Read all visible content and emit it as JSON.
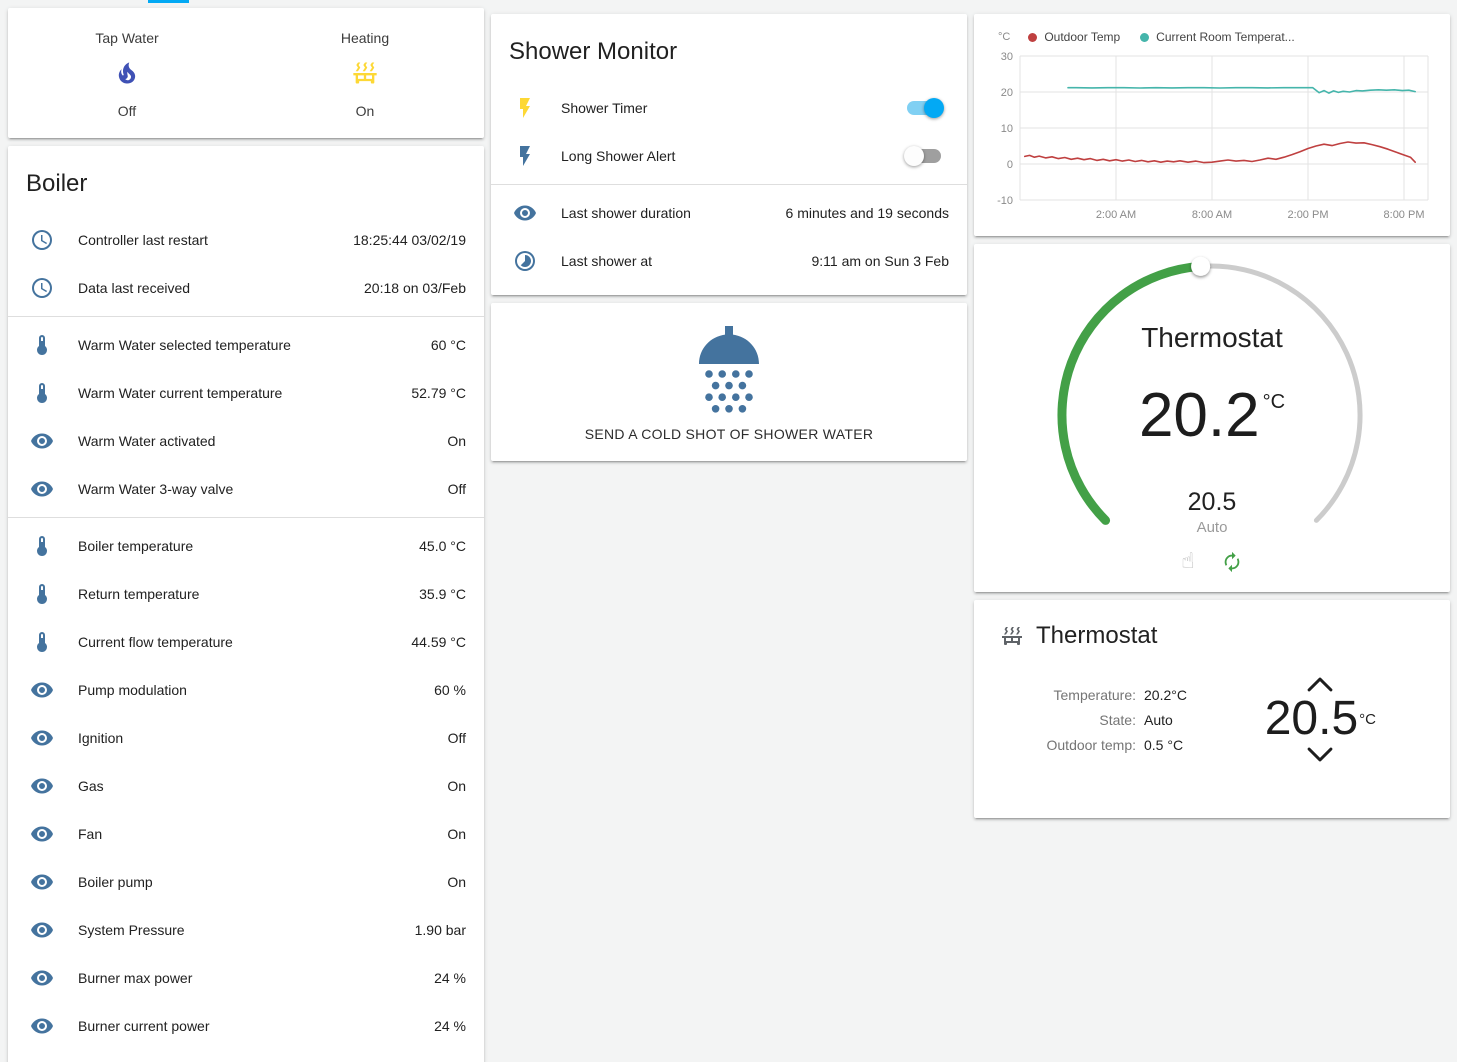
{
  "colors": {
    "accent_blue": "#03a9f4",
    "icon_blue": "#44739e",
    "toggle_on": "#03a9f4",
    "arc_green": "#43a047",
    "arc_rest_gray": "#cccccc"
  },
  "glance_card": {
    "items": [
      {
        "name": "tap-water",
        "label": "Tap Water",
        "state": "Off",
        "icon": "fire-icon",
        "icon_color": "#3f51b5"
      },
      {
        "name": "heating",
        "label": "Heating",
        "state": "On",
        "icon": "radiator-icon",
        "icon_color": "#fdd835"
      }
    ]
  },
  "boiler_card": {
    "title": "Boiler",
    "sections": [
      {
        "rows": [
          {
            "icon": "clock-icon",
            "label": "Controller last restart",
            "value": "18:25:44 03/02/19"
          },
          {
            "icon": "clock-icon",
            "label": "Data last received",
            "value": "20:18 on 03/Feb"
          }
        ]
      },
      {
        "rows": [
          {
            "icon": "thermometer-icon",
            "label": "Warm Water selected temperature",
            "value": "60 °C"
          },
          {
            "icon": "thermometer-icon",
            "label": "Warm Water current temperature",
            "value": "52.79 °C"
          },
          {
            "icon": "eye-icon",
            "label": "Warm Water activated",
            "value": "On"
          },
          {
            "icon": "eye-icon",
            "label": "Warm Water 3-way valve",
            "value": "Off"
          }
        ]
      },
      {
        "rows": [
          {
            "icon": "thermometer-icon",
            "label": "Boiler temperature",
            "value": "45.0 °C"
          },
          {
            "icon": "thermometer-icon",
            "label": "Return temperature",
            "value": "35.9 °C"
          },
          {
            "icon": "thermometer-icon",
            "label": "Current flow temperature",
            "value": "44.59 °C"
          },
          {
            "icon": "eye-icon",
            "label": "Pump modulation",
            "value": "60 %"
          },
          {
            "icon": "eye-icon",
            "label": "Ignition",
            "value": "Off"
          },
          {
            "icon": "eye-icon",
            "label": "Gas",
            "value": "On"
          },
          {
            "icon": "eye-icon",
            "label": "Fan",
            "value": "On"
          },
          {
            "icon": "eye-icon",
            "label": "Boiler pump",
            "value": "On"
          },
          {
            "icon": "eye-icon",
            "label": "System Pressure",
            "value": "1.90 bar"
          },
          {
            "icon": "eye-icon",
            "label": "Burner max power",
            "value": "24 %"
          },
          {
            "icon": "eye-icon",
            "label": "Burner current power",
            "value": "24 %"
          }
        ]
      }
    ]
  },
  "shower_card": {
    "title": "Shower Monitor",
    "toggles": [
      {
        "name": "shower-timer",
        "label": "Shower Timer",
        "icon": "flash-icon",
        "icon_color": "#fdd835",
        "state": "on"
      },
      {
        "name": "long-shower-alert",
        "label": "Long Shower Alert",
        "icon": "flash-icon",
        "icon_color": "#44739e",
        "state": "off"
      }
    ],
    "info_rows": [
      {
        "icon": "eye-icon",
        "label": "Last shower duration",
        "value": "6 minutes and 19 seconds"
      },
      {
        "icon": "timelapse-icon",
        "label": "Last shower at",
        "value": "9:11 am on Sun 3 Feb"
      }
    ]
  },
  "shower_action_card": {
    "icon": "shower-head-icon",
    "icon_color": "#44739e",
    "label": "SEND A COLD SHOT OF SHOWER WATER"
  },
  "chart_data": {
    "type": "line",
    "unit": "°C",
    "xlim": [
      -4,
      21.5
    ],
    "ylim": [
      -10,
      30
    ],
    "yticks": [
      30,
      20,
      10,
      0,
      -10
    ],
    "xticks": [
      {
        "v": 2,
        "label": "2:00 AM"
      },
      {
        "v": 8,
        "label": "8:00 AM"
      },
      {
        "v": 14,
        "label": "2:00 PM"
      },
      {
        "v": 20,
        "label": "8:00 PM"
      }
    ],
    "grid": true,
    "legend_position": "top",
    "series": [
      {
        "name": "Outdoor Temp",
        "color": "#bf4040",
        "x": [
          -3.7,
          -3.4,
          -3.1,
          -2.8,
          -2.4,
          -2.0,
          -1.6,
          -1.2,
          -0.8,
          -0.4,
          0,
          0.4,
          0.8,
          1.2,
          1.6,
          2.0,
          2.4,
          2.8,
          3.2,
          3.6,
          4.0,
          4.4,
          4.8,
          5.2,
          5.6,
          6.0,
          6.5,
          7.0,
          7.5,
          8.0,
          8.5,
          9.0,
          9.5,
          10.0,
          10.5,
          11.0,
          11.5,
          12.0,
          12.5,
          13.0,
          13.5,
          14.0,
          14.5,
          15.0,
          15.5,
          16.0,
          16.5,
          17.0,
          17.5,
          18.0,
          18.5,
          19.0,
          19.5,
          20.0,
          20.4,
          20.7
        ],
        "y": [
          2.1,
          2.4,
          1.9,
          2.2,
          1.7,
          2.0,
          1.5,
          1.8,
          1.3,
          1.6,
          1.2,
          1.5,
          1.0,
          1.3,
          0.9,
          1.2,
          0.8,
          1.1,
          0.7,
          1.0,
          0.6,
          0.9,
          0.5,
          0.8,
          0.6,
          0.9,
          0.5,
          0.8,
          0.4,
          0.5,
          0.8,
          1.1,
          0.8,
          1.0,
          0.7,
          1.1,
          1.6,
          1.3,
          1.9,
          2.6,
          3.4,
          4.3,
          5.0,
          5.5,
          5.1,
          5.7,
          6.1,
          5.8,
          5.9,
          5.4,
          4.8,
          4.1,
          3.3,
          2.5,
          1.9,
          0.5
        ]
      },
      {
        "name": "Current Room Temperat...",
        "color": "#45b5ab",
        "x": [
          -1.0,
          -0.5,
          0.5,
          1.5,
          2.5,
          3.5,
          4.5,
          5.5,
          6.5,
          7.5,
          8.5,
          9.5,
          10.5,
          11.5,
          12.5,
          13.5,
          14.3,
          14.7,
          15.0,
          15.3,
          15.6,
          15.9,
          16.2,
          16.6,
          17.0,
          17.4,
          17.9,
          18.4,
          18.9,
          19.4,
          19.9,
          20.3,
          20.7
        ],
        "y": [
          21.2,
          21.2,
          21.15,
          21.2,
          21.2,
          21.1,
          21.2,
          21.15,
          21.2,
          21.2,
          21.1,
          21.2,
          21.2,
          21.15,
          21.2,
          21.2,
          21.2,
          19.8,
          20.4,
          19.7,
          20.3,
          19.9,
          20.2,
          20.0,
          20.4,
          20.3,
          20.5,
          20.6,
          20.5,
          20.6,
          20.4,
          20.5,
          20.1
        ]
      }
    ]
  },
  "dial_card": {
    "title": "Thermostat",
    "current_temp": "20.2",
    "unit": "°C",
    "target_temp": "20.5",
    "mode": "Auto",
    "action_icons": [
      "hand-pointer-icon",
      "autorenew-icon"
    ]
  },
  "thermostat_card": {
    "title": "Thermostat",
    "icon": "radiator-icon",
    "icon_color": "#5f6368",
    "attributes": [
      {
        "label": "Temperature:",
        "value": "20.2°C"
      },
      {
        "label": "State:",
        "value": "Auto"
      },
      {
        "label": "Outdoor temp:",
        "value": "0.5 °C"
      }
    ],
    "target_temp": "20.5",
    "target_unit": "°C"
  }
}
